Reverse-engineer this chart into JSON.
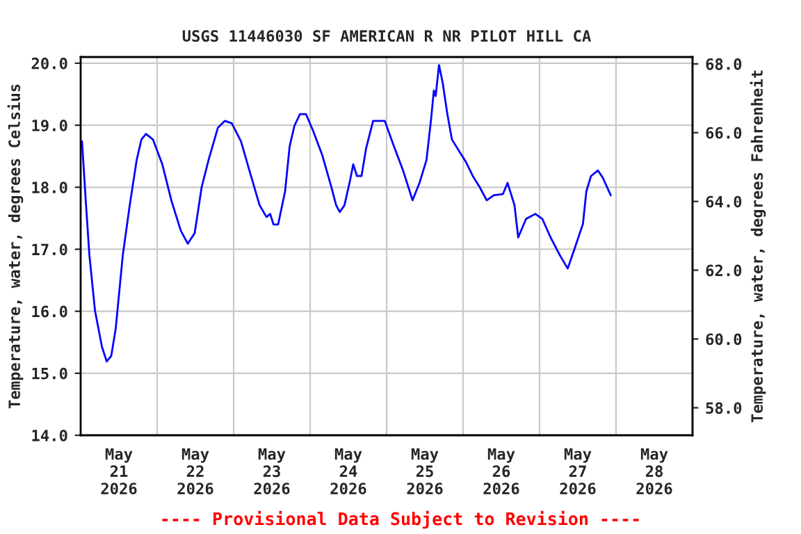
{
  "chart_data": {
    "type": "line",
    "title": "USGS 11446030 SF AMERICAN R NR PILOT HILL CA",
    "ylabel": "Temperature, water, degrees Celsius",
    "y2label": "Temperature, water, degrees Fahrenheit",
    "annotations": [
      "---- Provisional Data Subject to Revision ----"
    ],
    "grid": true,
    "legend": false,
    "marker": "none",
    "line_style": "solid",
    "xlim": [
      "2026-05-21T00:00",
      "2026-05-29T00:00"
    ],
    "xticks": [
      {
        "value": "2026-05-21T00:00",
        "label": null
      },
      {
        "value": "2026-05-21T12:00",
        "label": "May\n21\n2026"
      },
      {
        "value": "2026-05-22T00:00",
        "label": null
      },
      {
        "value": "2026-05-22T12:00",
        "label": "May\n22\n2026"
      },
      {
        "value": "2026-05-23T00:00",
        "label": null
      },
      {
        "value": "2026-05-23T12:00",
        "label": "May\n23\n2026"
      },
      {
        "value": "2026-05-24T00:00",
        "label": null
      },
      {
        "value": "2026-05-24T12:00",
        "label": "May\n24\n2026"
      },
      {
        "value": "2026-05-25T00:00",
        "label": null
      },
      {
        "value": "2026-05-25T12:00",
        "label": "May\n25\n2026"
      },
      {
        "value": "2026-05-26T00:00",
        "label": null
      },
      {
        "value": "2026-05-26T12:00",
        "label": "May\n26\n2026"
      },
      {
        "value": "2026-05-27T00:00",
        "label": null
      },
      {
        "value": "2026-05-27T12:00",
        "label": "May\n27\n2026"
      },
      {
        "value": "2026-05-28T00:00",
        "label": null
      },
      {
        "value": "2026-05-28T12:00",
        "label": "May\n28\n2026"
      }
    ],
    "ylim": [
      14.0,
      20.1
    ],
    "yticks": [
      {
        "value": 14,
        "label": "14.0"
      },
      {
        "value": 15,
        "label": "15.0"
      },
      {
        "value": 16,
        "label": "16.0"
      },
      {
        "value": 17,
        "label": "17.0"
      },
      {
        "value": 18,
        "label": "18.0"
      },
      {
        "value": 19,
        "label": "19.0"
      },
      {
        "value": 20,
        "label": "20.0"
      }
    ],
    "y2lim": [
      57.2,
      68.2
    ],
    "y2ticks": [
      {
        "value": 58,
        "label": "58.0"
      },
      {
        "value": 60,
        "label": "60.0"
      },
      {
        "value": 62,
        "label": "62.0"
      },
      {
        "value": 64,
        "label": "64.0"
      },
      {
        "value": 66,
        "label": "66.0"
      },
      {
        "value": 68,
        "label": "68.0"
      }
    ],
    "series": [
      {
        "color": "#0000ff",
        "x": [
          "2026-05-21T00:26",
          "2026-05-21T01:36",
          "2026-05-21T02:45",
          "2026-05-21T04:30",
          "2026-05-21T06:40",
          "2026-05-21T08:10",
          "2026-05-21T09:36",
          "2026-05-21T11:00",
          "2026-05-21T13:13",
          "2026-05-21T15:24",
          "2026-05-21T17:35",
          "2026-05-21T19:04",
          "2026-05-21T20:30",
          "2026-05-21T22:41",
          "2026-05-22T01:37",
          "2026-05-22T04:30",
          "2026-05-22T07:25",
          "2026-05-22T09:36",
          "2026-05-22T11:47",
          "2026-05-22T13:58",
          "2026-05-22T16:08",
          "2026-05-22T19:04",
          "2026-05-22T21:15",
          "2026-05-22T23:26",
          "2026-05-23T02:19",
          "2026-05-23T05:14",
          "2026-05-23T08:09",
          "2026-05-23T10:20",
          "2026-05-23T11:28",
          "2026-05-23T12:31",
          "2026-05-23T13:58",
          "2026-05-23T16:08",
          "2026-05-23T17:35",
          "2026-05-23T19:04",
          "2026-05-23T20:49",
          "2026-05-23T22:41",
          "2026-05-24T00:52",
          "2026-05-24T03:48",
          "2026-05-24T06:41",
          "2026-05-24T08:10",
          "2026-05-24T09:18",
          "2026-05-24T10:47",
          "2026-05-24T12:32",
          "2026-05-24T13:32",
          "2026-05-24T14:42",
          "2026-05-24T16:08",
          "2026-05-24T17:35",
          "2026-05-24T19:46",
          "2026-05-24T23:26",
          "2026-05-25T02:19",
          "2026-05-25T05:14",
          "2026-05-25T08:09",
          "2026-05-25T10:20",
          "2026-05-25T12:31",
          "2026-05-25T13:58",
          "2026-05-25T14:50",
          "2026-05-25T15:24",
          "2026-05-25T16:27",
          "2026-05-25T17:35",
          "2026-05-25T19:04",
          "2026-05-25T20:30",
          "2026-05-25T22:41",
          "2026-05-26T00:52",
          "2026-05-26T03:03",
          "2026-05-26T05:14",
          "2026-05-26T07:25",
          "2026-05-26T09:36",
          "2026-05-26T12:31",
          "2026-05-26T13:58",
          "2026-05-26T16:08",
          "2026-05-26T17:18",
          "2026-05-26T19:46",
          "2026-05-26T22:41",
          "2026-05-27T00:52",
          "2026-05-27T03:28",
          "2026-05-27T06:24",
          "2026-05-27T08:50",
          "2026-05-27T11:00",
          "2026-05-27T13:37",
          "2026-05-27T14:40",
          "2026-05-27T16:08",
          "2026-05-27T18:19",
          "2026-05-27T19:46",
          "2026-05-27T22:21"
        ],
        "values": [
          18.74,
          17.78,
          16.9,
          16.01,
          15.43,
          15.19,
          15.28,
          15.72,
          16.9,
          17.71,
          18.44,
          18.77,
          18.86,
          18.77,
          18.37,
          17.78,
          17.3,
          17.09,
          17.26,
          18.0,
          18.44,
          18.96,
          19.07,
          19.03,
          18.74,
          18.22,
          17.71,
          17.52,
          17.57,
          17.4,
          17.4,
          17.93,
          18.66,
          18.99,
          19.18,
          19.18,
          18.92,
          18.52,
          18.0,
          17.71,
          17.6,
          17.71,
          18.11,
          18.37,
          18.18,
          18.18,
          18.63,
          19.07,
          19.07,
          18.66,
          18.26,
          17.79,
          18.07,
          18.44,
          19.1,
          19.56,
          19.47,
          19.97,
          19.69,
          19.18,
          18.77,
          18.59,
          18.41,
          18.18,
          18.0,
          17.79,
          17.87,
          17.89,
          18.07,
          17.71,
          17.19,
          17.49,
          17.57,
          17.49,
          17.19,
          16.9,
          16.69,
          17.01,
          17.41,
          17.93,
          18.18,
          18.27,
          18.16,
          17.87
        ]
      }
    ]
  }
}
